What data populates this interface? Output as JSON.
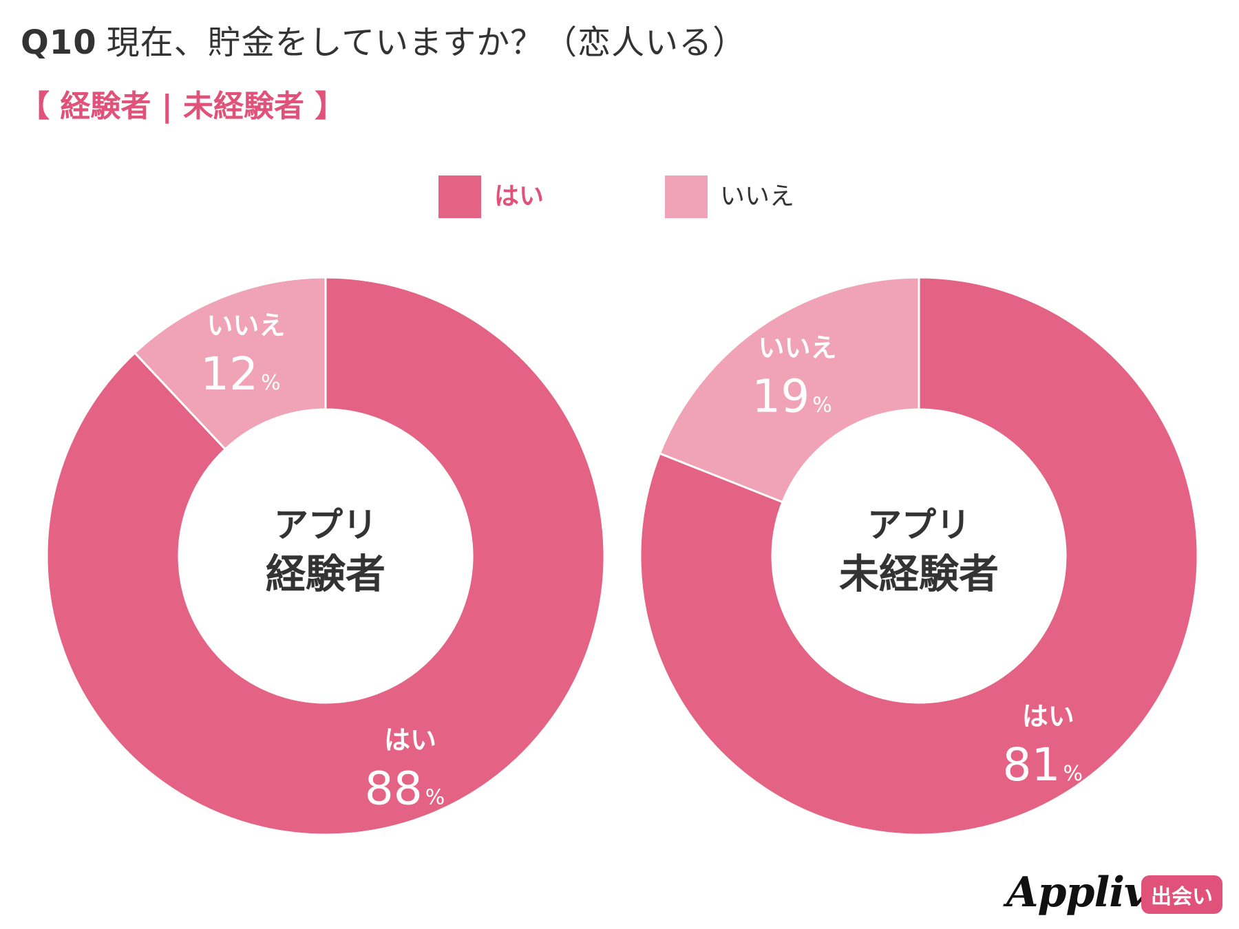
{
  "header": {
    "q_number": "Q10",
    "question": "現在、貯金をしていますか？（恋人いる）",
    "subtitle": "【 経験者 | 未経験者 】"
  },
  "colors": {
    "yes": "#e46385",
    "no": "#f0a2b6",
    "accent": "#e0527a",
    "title_text": "#333333",
    "center_text": "#333333"
  },
  "legend": {
    "items": [
      {
        "label": "はい",
        "color": "#e46385"
      },
      {
        "label": "いいえ",
        "color": "#f0a2b6"
      }
    ]
  },
  "chart_data": [
    {
      "type": "pie",
      "donut": true,
      "center_label": [
        "アプリ",
        "経験者"
      ],
      "slices": [
        {
          "label": "はい",
          "value": 88,
          "display": "88"
        },
        {
          "label": "いいえ",
          "value": 12,
          "display": "12"
        }
      ],
      "unit": "%"
    },
    {
      "type": "pie",
      "donut": true,
      "center_label": [
        "アプリ",
        "未経験者"
      ],
      "slices": [
        {
          "label": "はい",
          "value": 81,
          "display": "81"
        },
        {
          "label": "いいえ",
          "value": 19,
          "display": "19"
        }
      ],
      "unit": "%"
    }
  ],
  "branding": {
    "logo_text": "Appliv",
    "tag": "出会い"
  }
}
